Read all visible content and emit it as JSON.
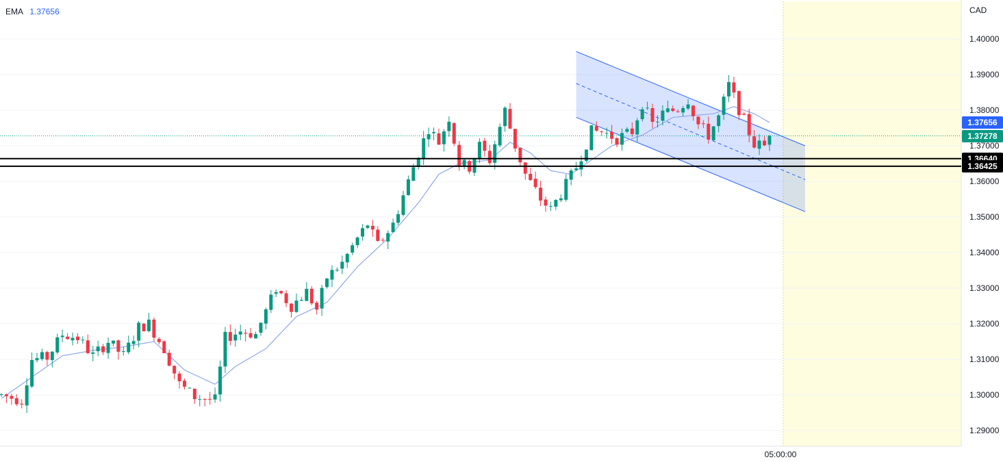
{
  "indicator": {
    "name": "EMA",
    "value": "1.37656"
  },
  "currency": "CAD",
  "time_label": "05:00:00",
  "price_tags": [
    {
      "label": "1.37656",
      "price": 1.37656,
      "color": "#2962ff"
    },
    {
      "label": "1.37278",
      "price": 1.37278,
      "color": "#089981"
    },
    {
      "label": "1.36640",
      "price": 1.3664,
      "color": "#000000"
    },
    {
      "label": "1.36425",
      "price": 1.36425,
      "color": "#000000"
    }
  ],
  "colors": {
    "up": "#089981",
    "down": "#f23645",
    "ema": "#90a8e8",
    "channel": "#2962ff",
    "future_zone": "#fefde0"
  },
  "chart_data": {
    "type": "candlestick",
    "symbol_currency": "CAD",
    "y_axis": {
      "ticks": [
        "1.40000",
        "1.39000",
        "1.38000",
        "1.37000",
        "1.36000",
        "1.35000",
        "1.34000",
        "1.33000",
        "1.32000",
        "1.31000",
        "1.30000",
        "1.29000"
      ],
      "range": [
        1.2825,
        1.41
      ]
    },
    "x_axis": {
      "labels": [
        "05:00:00"
      ]
    },
    "current_price": 1.37278,
    "horizontal_levels": [
      1.3664,
      1.36425
    ],
    "ema": {
      "period_label": "EMA",
      "last": 1.37656
    },
    "descending_channel": {
      "upper": [
        [
          113,
          1.3965
        ],
        [
          158,
          1.37
        ]
      ],
      "middle": [
        [
          113,
          1.3875
        ],
        [
          158,
          1.3605
        ]
      ],
      "lower": [
        [
          113,
          1.378
        ],
        [
          158,
          1.3515
        ]
      ]
    },
    "waypoints": [
      [
        0,
        1.3
      ],
      [
        4,
        1.2985
      ],
      [
        6,
        1.31
      ],
      [
        9,
        1.3105
      ],
      [
        12,
        1.317
      ],
      [
        15,
        1.316
      ],
      [
        18,
        1.311
      ],
      [
        21,
        1.315
      ],
      [
        24,
        1.311
      ],
      [
        27,
        1.319
      ],
      [
        29,
        1.32
      ],
      [
        32,
        1.313
      ],
      [
        35,
        1.303
      ],
      [
        38,
        1.2995
      ],
      [
        42,
        1.2985
      ],
      [
        44,
        1.316
      ],
      [
        47,
        1.318
      ],
      [
        50,
        1.317
      ],
      [
        54,
        1.33
      ],
      [
        57,
        1.325
      ],
      [
        60,
        1.329
      ],
      [
        62,
        1.324
      ],
      [
        64,
        1.333
      ],
      [
        67,
        1.337
      ],
      [
        70,
        1.344
      ],
      [
        72,
        1.348
      ],
      [
        74,
        1.342
      ],
      [
        77,
        1.348
      ],
      [
        80,
        1.36
      ],
      [
        82,
        1.368
      ],
      [
        84,
        1.375
      ],
      [
        86,
        1.371
      ],
      [
        88,
        1.378
      ],
      [
        90,
        1.365
      ],
      [
        92,
        1.364
      ],
      [
        94,
        1.37
      ],
      [
        96,
        1.366
      ],
      [
        99,
        1.38
      ],
      [
        101,
        1.37
      ],
      [
        103,
        1.362
      ],
      [
        106,
        1.355
      ],
      [
        108,
        1.352
      ],
      [
        111,
        1.359
      ],
      [
        113,
        1.364
      ],
      [
        116,
        1.374
      ],
      [
        118,
        1.374
      ],
      [
        121,
        1.372
      ],
      [
        124,
        1.374
      ],
      [
        126,
        1.382
      ],
      [
        128,
        1.376
      ],
      [
        130,
        1.379
      ],
      [
        133,
        1.3805
      ],
      [
        135,
        1.383
      ],
      [
        137,
        1.376
      ],
      [
        139,
        1.373
      ],
      [
        141,
        1.378
      ],
      [
        143,
        1.387
      ],
      [
        146,
        1.377
      ],
      [
        148,
        1.3705
      ],
      [
        150,
        1.37
      ],
      [
        151,
        1.3728
      ]
    ],
    "ema_waypoints": [
      [
        0,
        1.299
      ],
      [
        6,
        1.305
      ],
      [
        12,
        1.311
      ],
      [
        18,
        1.3125
      ],
      [
        24,
        1.3135
      ],
      [
        30,
        1.315
      ],
      [
        36,
        1.307
      ],
      [
        42,
        1.303
      ],
      [
        46,
        1.308
      ],
      [
        52,
        1.313
      ],
      [
        58,
        1.322
      ],
      [
        64,
        1.326
      ],
      [
        70,
        1.336
      ],
      [
        76,
        1.344
      ],
      [
        82,
        1.354
      ],
      [
        86,
        1.362
      ],
      [
        90,
        1.365
      ],
      [
        96,
        1.366
      ],
      [
        100,
        1.371
      ],
      [
        104,
        1.368
      ],
      [
        108,
        1.363
      ],
      [
        112,
        1.362
      ],
      [
        116,
        1.366
      ],
      [
        120,
        1.37
      ],
      [
        126,
        1.373
      ],
      [
        132,
        1.378
      ],
      [
        136,
        1.3785
      ],
      [
        140,
        1.379
      ],
      [
        144,
        1.381
      ],
      [
        148,
        1.379
      ],
      [
        151,
        1.37656
      ]
    ]
  }
}
